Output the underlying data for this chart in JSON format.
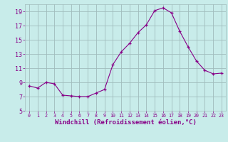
{
  "x": [
    0,
    1,
    2,
    3,
    4,
    5,
    6,
    7,
    8,
    9,
    10,
    11,
    12,
    13,
    14,
    15,
    16,
    17,
    18,
    19,
    20,
    21,
    22,
    23
  ],
  "y": [
    8.5,
    8.2,
    9.0,
    8.8,
    7.2,
    7.1,
    7.0,
    7.0,
    7.5,
    8.0,
    11.5,
    13.3,
    14.5,
    16.0,
    17.1,
    19.1,
    19.5,
    18.8,
    16.2,
    14.0,
    12.0,
    10.7,
    10.2,
    10.3
  ],
  "line_color": "#880088",
  "marker_color": "#880088",
  "bg_color": "#c8ecea",
  "grid_color": "#a0bcbc",
  "xlabel": "Windchill (Refroidissement éolien,°C)",
  "ylim": [
    5,
    20
  ],
  "xlim": [
    -0.5,
    23.5
  ],
  "yticks": [
    5,
    7,
    9,
    11,
    13,
    15,
    17,
    19
  ],
  "xticks": [
    0,
    1,
    2,
    3,
    4,
    5,
    6,
    7,
    8,
    9,
    10,
    11,
    12,
    13,
    14,
    15,
    16,
    17,
    18,
    19,
    20,
    21,
    22,
    23
  ],
  "font_color": "#880088",
  "font_family": "monospace",
  "xlabel_fontsize": 6.5,
  "tick_fontsize_x": 4.8,
  "tick_fontsize_y": 6.0
}
